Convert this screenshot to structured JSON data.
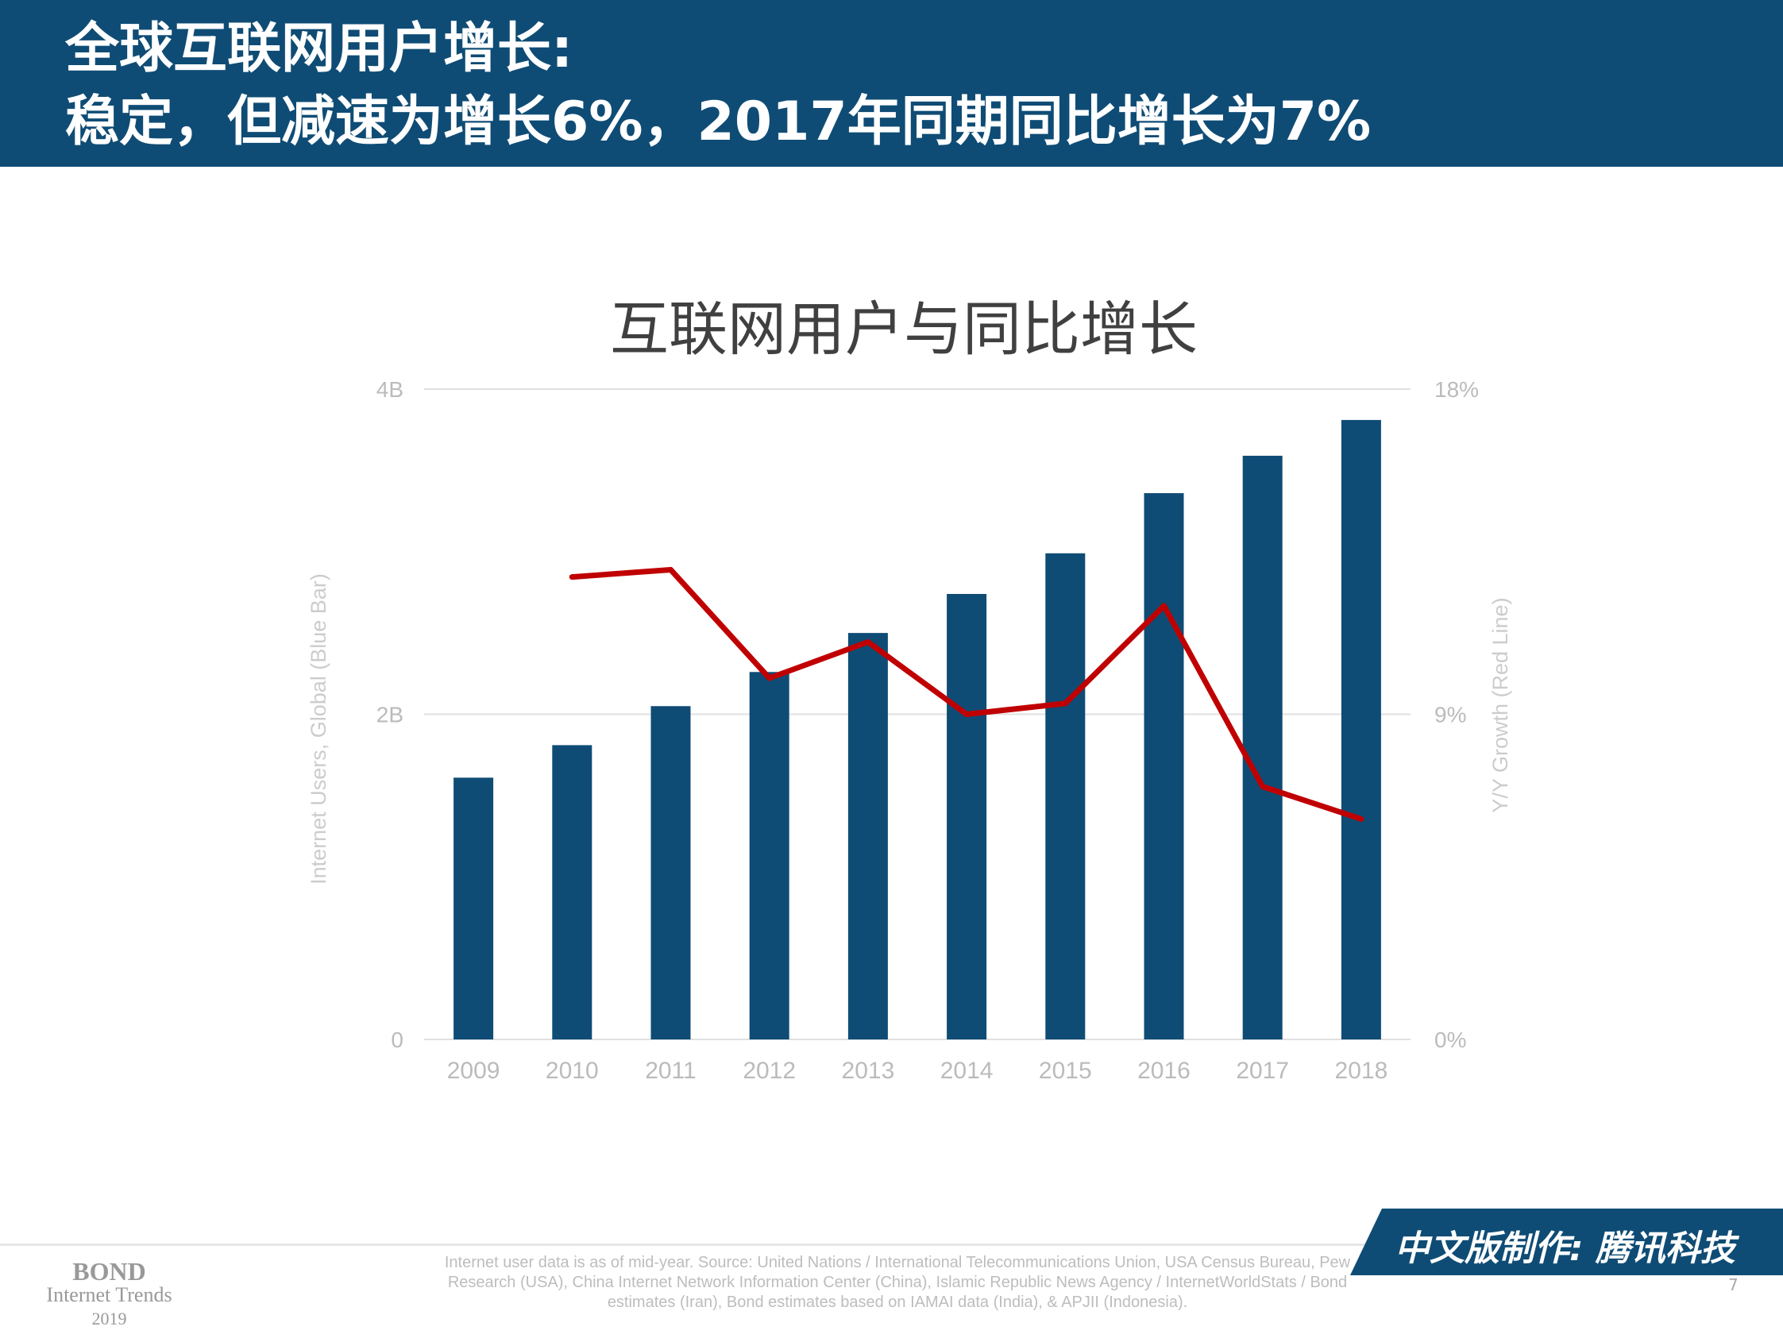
{
  "header": {
    "line1": "全球互联网用户增长:",
    "line2": "稳定，但减速为增长6%，2017年同期同比增长为7%"
  },
  "chart_data": {
    "type": "bar+line",
    "title": "互联网用户与同比增长",
    "categories": [
      "2009",
      "2010",
      "2011",
      "2012",
      "2013",
      "2014",
      "2015",
      "2016",
      "2017",
      "2018"
    ],
    "series": [
      {
        "name": "Internet Users, Global (Blue Bar)",
        "type": "bar",
        "axis": "left",
        "unit": "B",
        "values": [
          1.61,
          1.81,
          2.05,
          2.26,
          2.5,
          2.74,
          2.99,
          3.36,
          3.59,
          3.81
        ],
        "color": "#0f4c75"
      },
      {
        "name": "Y/Y Growth (Red Line)",
        "type": "line",
        "axis": "right",
        "unit": "%",
        "values": [
          null,
          12.8,
          13.0,
          10.0,
          11.0,
          9.0,
          9.3,
          12.0,
          7.0,
          6.1
        ],
        "color": "#c00000"
      }
    ],
    "ylabel": "Internet Users, Global (Blue Bar)",
    "y2label": "Y/Y Growth (Red Line)",
    "ylim": [
      0,
      4
    ],
    "y2lim": [
      0,
      18
    ],
    "yticks": [
      "0",
      "2B",
      "4B"
    ],
    "y2ticks": [
      "0%",
      "9%",
      "18%"
    ],
    "grid": true
  },
  "footer": {
    "bond": [
      "BOND",
      "Internet Trends",
      "2019"
    ],
    "source": "Internet user data is as of mid-year. Source: United Nations / International Telecommunications Union, USA Census Bureau, Pew Research (USA), China Internet Network Information Center (China), Islamic Republic News Agency / InternetWorldStats / Bond estimates (Iran), Bond estimates based on IAMAI data (India), & APJII (Indonesia).",
    "badge": "中文版制作: 腾讯科技",
    "page": "7"
  },
  "watermark": "腾讯科技"
}
